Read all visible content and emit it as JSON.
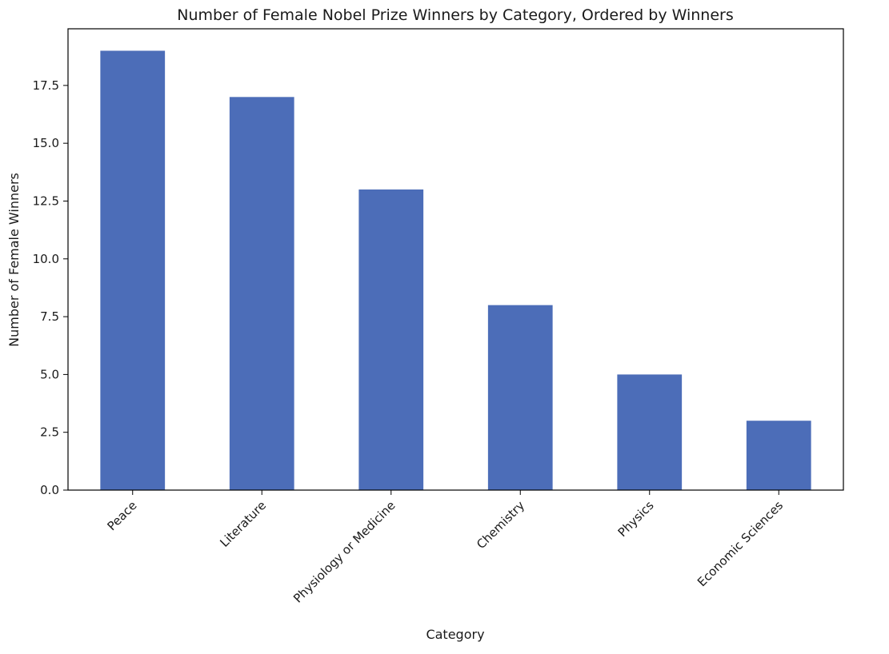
{
  "chart_data": {
    "type": "bar",
    "title": "Number of Female Nobel Prize Winners by Category, Ordered by Winners",
    "xlabel": "Category",
    "ylabel": "Number of Female Winners",
    "categories": [
      "Peace",
      "Literature",
      "Physiology or Medicine",
      "Chemistry",
      "Physics",
      "Economic Sciences"
    ],
    "values": [
      19,
      17,
      13,
      8,
      5,
      3
    ],
    "ylim": [
      0,
      19.95
    ],
    "yticks": [
      "0.0",
      "2.5",
      "5.0",
      "7.5",
      "10.0",
      "12.5",
      "15.0",
      "17.5"
    ],
    "grid": false,
    "legend": "none",
    "bar_color": "#4c6db8",
    "axis_color": "#000000"
  }
}
